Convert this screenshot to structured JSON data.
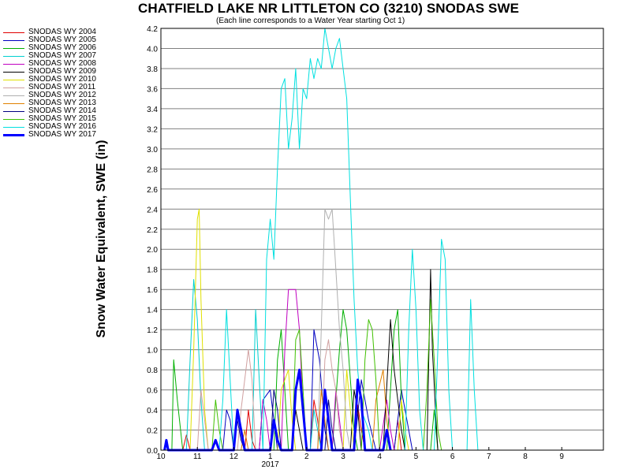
{
  "chart_data": {
    "type": "line",
    "title": "CHATFIELD LAKE NR LITTLETON CO (3210) SNODAS SWE",
    "subtitle": "(Each line corresponds to a Water Year starting Oct 1)",
    "ylabel": "Snow Water Equivalent, SWE (in)",
    "xlabel": "",
    "x_ticks": [
      "10",
      "11",
      "12",
      "1",
      "2",
      "3",
      "4",
      "5",
      "6",
      "7",
      "8",
      "9"
    ],
    "x_year_label": "2017",
    "y_ticks": [
      "0.0",
      "0.2",
      "0.4",
      "0.6",
      "0.8",
      "1.0",
      "1.2",
      "1.4",
      "1.6",
      "1.8",
      "2.0",
      "2.2",
      "2.4",
      "2.6",
      "2.8",
      "3.0",
      "3.2",
      "3.4",
      "3.6",
      "3.8",
      "4.0",
      "4.2"
    ],
    "ylim": [
      0,
      4.2
    ],
    "grid": true,
    "legend_position": "left",
    "series": [
      {
        "name": "SNODAS WY 2004",
        "color": "#e00000",
        "width": 1,
        "points": [
          [
            0.6,
            0
          ],
          [
            0.7,
            0.15
          ],
          [
            0.8,
            0
          ],
          [
            2.3,
            0
          ],
          [
            2.4,
            0.4
          ],
          [
            2.5,
            0.1
          ],
          [
            2.6,
            0
          ],
          [
            4.1,
            0
          ],
          [
            4.2,
            0.5
          ],
          [
            4.3,
            0.3
          ],
          [
            4.4,
            0
          ],
          [
            5.3,
            0
          ],
          [
            5.4,
            0.45
          ],
          [
            5.5,
            0.2
          ],
          [
            5.6,
            0
          ],
          [
            6.4,
            0
          ],
          [
            6.5,
            0.3
          ],
          [
            6.6,
            0
          ]
        ]
      },
      {
        "name": "SNODAS WY 2005",
        "color": "#0000c0",
        "width": 1,
        "points": [
          [
            1.7,
            0
          ],
          [
            1.8,
            0.4
          ],
          [
            1.9,
            0.3
          ],
          [
            2.0,
            0
          ],
          [
            2.7,
            0
          ],
          [
            2.8,
            0.5
          ],
          [
            3.0,
            0.6
          ],
          [
            3.1,
            0.3
          ],
          [
            3.2,
            0
          ],
          [
            4.1,
            0
          ],
          [
            4.2,
            1.2
          ],
          [
            4.35,
            0.9
          ],
          [
            4.5,
            0.2
          ],
          [
            4.6,
            0
          ],
          [
            5.3,
            0
          ],
          [
            5.5,
            0.7
          ],
          [
            5.7,
            0.3
          ],
          [
            5.9,
            0
          ],
          [
            6.4,
            0
          ],
          [
            6.6,
            0.6
          ],
          [
            6.8,
            0.2
          ],
          [
            6.9,
            0
          ]
        ]
      },
      {
        "name": "SNODAS WY 2006",
        "color": "#00b000",
        "width": 1,
        "points": [
          [
            0.3,
            0
          ],
          [
            0.35,
            0.9
          ],
          [
            0.45,
            0.5
          ],
          [
            0.6,
            0
          ],
          [
            3.1,
            0
          ],
          [
            3.2,
            0.9
          ],
          [
            3.3,
            1.2
          ],
          [
            3.4,
            0.6
          ],
          [
            3.5,
            0
          ],
          [
            4.7,
            0
          ],
          [
            4.9,
            1.0
          ],
          [
            5.0,
            1.4
          ],
          [
            5.1,
            1.2
          ],
          [
            5.3,
            0.2
          ],
          [
            5.4,
            0
          ],
          [
            6.2,
            0
          ],
          [
            6.4,
            1.2
          ],
          [
            6.5,
            1.4
          ],
          [
            6.6,
            0.5
          ],
          [
            6.7,
            0
          ],
          [
            7.4,
            0
          ],
          [
            7.5,
            0.4
          ],
          [
            7.6,
            0
          ]
        ]
      },
      {
        "name": "SNODAS WY 2007",
        "color": "#00d0d0",
        "width": 1,
        "points": [
          [
            0.7,
            0
          ],
          [
            0.8,
            0.9
          ],
          [
            0.9,
            1.7
          ],
          [
            1.0,
            1.3
          ],
          [
            1.1,
            0.5
          ],
          [
            1.2,
            0
          ],
          [
            2.5,
            0
          ],
          [
            2.6,
            1.4
          ],
          [
            2.7,
            0.7
          ],
          [
            2.8,
            0
          ],
          [
            4.1,
            0
          ],
          [
            4.2,
            0.4
          ],
          [
            4.3,
            0.2
          ],
          [
            4.4,
            0
          ]
        ]
      },
      {
        "name": "SNODAS WY 2008",
        "color": "#c000c0",
        "width": 1,
        "points": [
          [
            2.7,
            0
          ],
          [
            2.8,
            0.5
          ],
          [
            2.9,
            0.3
          ],
          [
            3.0,
            0
          ],
          [
            3.3,
            0
          ],
          [
            3.4,
            1.0
          ],
          [
            3.5,
            1.6
          ],
          [
            3.7,
            1.6
          ],
          [
            3.8,
            1.2
          ],
          [
            3.9,
            0.4
          ],
          [
            4.0,
            0
          ],
          [
            4.7,
            0
          ],
          [
            4.8,
            0.6
          ],
          [
            4.9,
            0.3
          ],
          [
            5.0,
            0
          ],
          [
            6.0,
            0
          ],
          [
            6.2,
            0.5
          ],
          [
            6.3,
            0.2
          ],
          [
            6.4,
            0
          ]
        ]
      },
      {
        "name": "SNODAS WY 2009",
        "color": "#000000",
        "width": 1,
        "points": [
          [
            3.6,
            0
          ],
          [
            3.7,
            0.4
          ],
          [
            3.8,
            0.2
          ],
          [
            3.9,
            0
          ],
          [
            5.2,
            0
          ],
          [
            5.3,
            0.6
          ],
          [
            5.4,
            0.4
          ],
          [
            5.5,
            0
          ],
          [
            6.1,
            0
          ],
          [
            6.3,
            1.3
          ],
          [
            6.4,
            0.8
          ],
          [
            6.6,
            0.2
          ],
          [
            6.7,
            0
          ],
          [
            7.3,
            0
          ],
          [
            7.4,
            1.8
          ],
          [
            7.45,
            1.0
          ],
          [
            7.55,
            0.3
          ],
          [
            7.6,
            0
          ]
        ]
      },
      {
        "name": "SNODAS WY 2010",
        "color": "#e0e000",
        "width": 1,
        "points": [
          [
            0.8,
            0
          ],
          [
            0.9,
            1.0
          ],
          [
            1.0,
            2.3
          ],
          [
            1.05,
            2.4
          ],
          [
            1.1,
            1.5
          ],
          [
            1.2,
            0.4
          ],
          [
            1.3,
            0
          ],
          [
            3.2,
            0
          ],
          [
            3.3,
            0.6
          ],
          [
            3.5,
            0.8
          ],
          [
            3.6,
            0.3
          ],
          [
            3.7,
            0
          ],
          [
            5.0,
            0
          ],
          [
            5.1,
            0.8
          ],
          [
            5.2,
            0.4
          ],
          [
            5.3,
            0
          ],
          [
            6.5,
            0
          ],
          [
            6.6,
            0.5
          ],
          [
            6.7,
            0.2
          ],
          [
            6.8,
            0
          ]
        ]
      },
      {
        "name": "SNODAS WY 2011",
        "color": "#d0a0a0",
        "width": 1,
        "points": [
          [
            1.0,
            0
          ],
          [
            1.1,
            0.6
          ],
          [
            1.2,
            0.3
          ],
          [
            1.3,
            0
          ],
          [
            2.1,
            0
          ],
          [
            2.2,
            0.4
          ],
          [
            2.4,
            1.0
          ],
          [
            2.5,
            0.7
          ],
          [
            2.6,
            0
          ],
          [
            4.4,
            0
          ],
          [
            4.5,
            0.9
          ],
          [
            4.6,
            1.1
          ],
          [
            4.7,
            0.8
          ],
          [
            4.8,
            0.6
          ],
          [
            4.9,
            0.2
          ],
          [
            5.0,
            0
          ]
        ]
      },
      {
        "name": "SNODAS WY 2012",
        "color": "#b0b0b0",
        "width": 1,
        "points": [
          [
            4.3,
            0
          ],
          [
            4.4,
            1.2
          ],
          [
            4.5,
            2.4
          ],
          [
            4.6,
            2.3
          ],
          [
            4.7,
            2.4
          ],
          [
            4.8,
            1.8
          ],
          [
            4.9,
            1.2
          ],
          [
            5.0,
            0.8
          ],
          [
            5.1,
            0.2
          ],
          [
            5.2,
            0
          ]
        ]
      },
      {
        "name": "SNODAS WY 2013",
        "color": "#e08000",
        "width": 1,
        "points": [
          [
            2.2,
            0
          ],
          [
            2.3,
            0.2
          ],
          [
            2.4,
            0
          ],
          [
            4.3,
            0
          ],
          [
            4.4,
            0.6
          ],
          [
            4.5,
            0.3
          ],
          [
            4.6,
            0
          ],
          [
            5.8,
            0
          ],
          [
            5.9,
            0.5
          ],
          [
            6.1,
            0.8
          ],
          [
            6.2,
            0.3
          ],
          [
            6.3,
            0
          ]
        ]
      },
      {
        "name": "SNODAS WY 2014",
        "color": "#000080",
        "width": 1,
        "points": [
          [
            2.0,
            0
          ],
          [
            2.1,
            0.3
          ],
          [
            2.2,
            0.1
          ],
          [
            2.3,
            0
          ],
          [
            3.0,
            0
          ],
          [
            3.1,
            0.6
          ],
          [
            3.2,
            0.4
          ],
          [
            3.3,
            0
          ],
          [
            4.5,
            0
          ],
          [
            4.6,
            0.5
          ],
          [
            4.7,
            0.2
          ],
          [
            4.8,
            0
          ]
        ]
      },
      {
        "name": "SNODAS WY 2015",
        "color": "#40c000",
        "width": 1,
        "points": [
          [
            1.4,
            0
          ],
          [
            1.5,
            0.5
          ],
          [
            1.6,
            0.2
          ],
          [
            1.7,
            0
          ],
          [
            3.6,
            0
          ],
          [
            3.7,
            1.1
          ],
          [
            3.8,
            1.2
          ],
          [
            3.9,
            0.6
          ],
          [
            4.0,
            0
          ],
          [
            5.5,
            0
          ],
          [
            5.6,
            0.9
          ],
          [
            5.7,
            1.3
          ],
          [
            5.8,
            1.2
          ],
          [
            5.9,
            0.7
          ],
          [
            6.0,
            0
          ],
          [
            7.2,
            0
          ],
          [
            7.3,
            0.6
          ],
          [
            7.4,
            1.5
          ],
          [
            7.5,
            0.9
          ],
          [
            7.6,
            0.2
          ],
          [
            7.7,
            0
          ]
        ]
      },
      {
        "name": "SNODAS WY 2016",
        "color": "#00e0e0",
        "width": 1,
        "points": [
          [
            1.6,
            0
          ],
          [
            1.7,
            0.5
          ],
          [
            1.8,
            1.4
          ],
          [
            1.9,
            0.7
          ],
          [
            2.0,
            0
          ],
          [
            2.8,
            0
          ],
          [
            2.9,
            1.9
          ],
          [
            3.0,
            2.3
          ],
          [
            3.1,
            1.9
          ],
          [
            3.2,
            2.8
          ],
          [
            3.3,
            3.6
          ],
          [
            3.4,
            3.7
          ],
          [
            3.5,
            3.0
          ],
          [
            3.6,
            3.3
          ],
          [
            3.7,
            3.8
          ],
          [
            3.8,
            3.0
          ],
          [
            3.9,
            3.6
          ],
          [
            4.0,
            3.5
          ],
          [
            4.1,
            3.9
          ],
          [
            4.2,
            3.7
          ],
          [
            4.3,
            3.9
          ],
          [
            4.4,
            3.8
          ],
          [
            4.5,
            4.2
          ],
          [
            4.6,
            4.0
          ],
          [
            4.7,
            3.8
          ],
          [
            4.8,
            4.0
          ],
          [
            4.9,
            4.1
          ],
          [
            5.0,
            3.8
          ],
          [
            5.1,
            3.5
          ],
          [
            5.2,
            2.5
          ],
          [
            5.3,
            1.5
          ],
          [
            5.4,
            0.8
          ],
          [
            5.5,
            0.4
          ],
          [
            5.7,
            0.2
          ],
          [
            5.8,
            0
          ],
          [
            6.7,
            0
          ],
          [
            6.8,
            1.2
          ],
          [
            6.9,
            2.0
          ],
          [
            7.0,
            1.4
          ],
          [
            7.1,
            0.4
          ],
          [
            7.2,
            0
          ],
          [
            7.5,
            0
          ],
          [
            7.6,
            1.0
          ],
          [
            7.7,
            2.1
          ],
          [
            7.8,
            1.9
          ],
          [
            7.9,
            0.6
          ],
          [
            8.0,
            0
          ],
          [
            8.4,
            0
          ],
          [
            8.5,
            1.5
          ],
          [
            8.6,
            0.6
          ],
          [
            8.7,
            0
          ]
        ]
      },
      {
        "name": "SNODAS WY 2017",
        "color": "#0000ff",
        "width": 3,
        "points": [
          [
            0.1,
            0
          ],
          [
            0.15,
            0.1
          ],
          [
            0.2,
            0
          ],
          [
            1.4,
            0
          ],
          [
            1.5,
            0.1
          ],
          [
            1.6,
            0
          ],
          [
            2.0,
            0
          ],
          [
            2.1,
            0.4
          ],
          [
            2.2,
            0.2
          ],
          [
            2.3,
            0
          ],
          [
            3.0,
            0
          ],
          [
            3.1,
            0.3
          ],
          [
            3.2,
            0.1
          ],
          [
            3.3,
            0
          ],
          [
            3.6,
            0
          ],
          [
            3.7,
            0.6
          ],
          [
            3.8,
            0.8
          ],
          [
            3.9,
            0.4
          ],
          [
            4.0,
            0
          ],
          [
            4.4,
            0
          ],
          [
            4.5,
            0.6
          ],
          [
            4.6,
            0.3
          ],
          [
            4.7,
            0
          ],
          [
            5.3,
            0
          ],
          [
            5.4,
            0.7
          ],
          [
            5.5,
            0.5
          ],
          [
            5.6,
            0
          ],
          [
            6.1,
            0
          ],
          [
            6.2,
            0.2
          ],
          [
            6.3,
            0
          ]
        ]
      }
    ]
  }
}
